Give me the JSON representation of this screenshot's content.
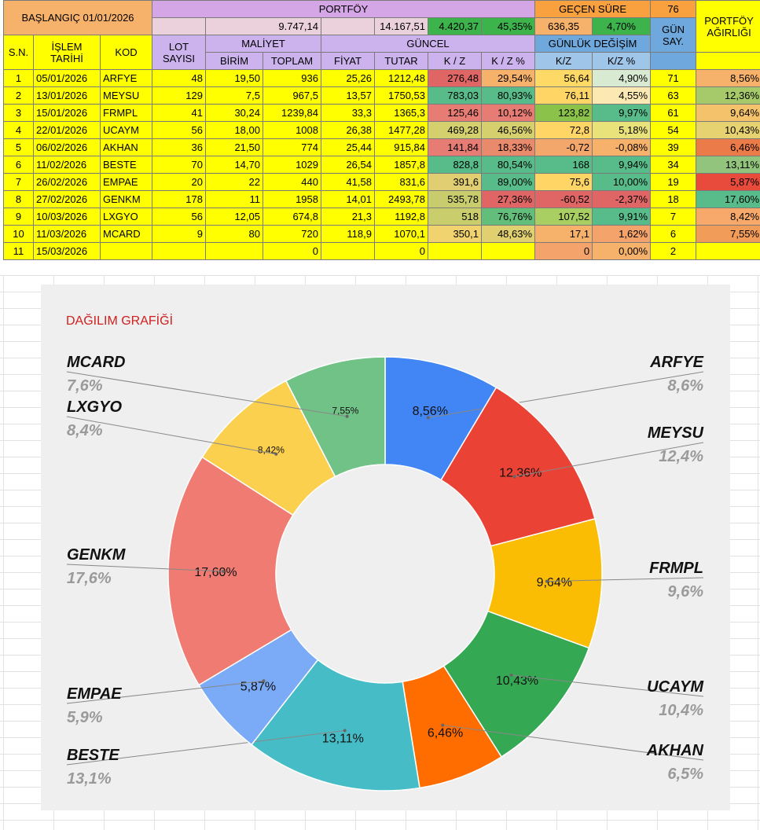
{
  "header": {
    "start_label": "BAŞLANGIÇ 01/01/2026",
    "portfolio_label": "PORTFÖY",
    "elapsed_label": "GEÇEN SÜRE",
    "elapsed_value": "76",
    "weight_label": "PORTFÖY AĞIRLIĞI",
    "portfolio_cost_total": "9.747,14",
    "portfolio_current_total": "14.167,51",
    "portfolio_pl": "4.420,37",
    "portfolio_pl_pct": "45,35%",
    "daily_change_total": "636,35",
    "daily_change_pct": "4,70%"
  },
  "columns": {
    "sn": "S.N.",
    "date": "İŞLEM TARİHİ",
    "code": "KOD",
    "lot": "LOT SAYISI",
    "cost_group": "MALİYET",
    "unit": "BİRİM",
    "total": "TOPLAM",
    "current_group": "GÜNCEL",
    "price": "FİYAT",
    "amount": "TUTAR",
    "pl": "K / Z",
    "pl_pct": "K / Z %",
    "daily_group": "GÜNLÜK DEĞİŞİM",
    "daily_pl": "K/Z",
    "daily_pl_pct": "K/Z %",
    "days": "GÜN SAY."
  },
  "rows": [
    {
      "sn": "1",
      "date": "05/01/2026",
      "code": "ARFYE",
      "lot": "48",
      "unit": "19,50",
      "total": "936",
      "price": "25,26",
      "amount": "1212,48",
      "pl": "276,48",
      "pl_pct": "29,54%",
      "dpl": "56,64",
      "dpl_pct": "4,90%",
      "days": "71",
      "weight": "8,56%",
      "c_pl": "#e06666",
      "c_plp": "#f6b26b",
      "c_dpl": "#ffd966",
      "c_dplp": "#d9ead3",
      "c_w": "#f6b26b"
    },
    {
      "sn": "2",
      "date": "13/01/2026",
      "code": "MEYSU",
      "lot": "129",
      "unit": "7,5",
      "total": "967,5",
      "price": "13,57",
      "amount": "1750,53",
      "pl": "783,03",
      "pl_pct": "80,93%",
      "dpl": "76,11",
      "dpl_pct": "4,55%",
      "days": "63",
      "weight": "12,36%",
      "c_pl": "#57bb8a",
      "c_plp": "#57bb8a",
      "c_dpl": "#ffd666",
      "c_dplp": "#fce8b2",
      "c_w": "#a6c96a"
    },
    {
      "sn": "3",
      "date": "15/01/2026",
      "code": "FRMPL",
      "lot": "41",
      "unit": "30,24",
      "total": "1239,84",
      "price": "33,3",
      "amount": "1365,3",
      "pl": "125,46",
      "pl_pct": "10,12%",
      "dpl": "123,82",
      "dpl_pct": "9,97%",
      "days": "61",
      "weight": "9,64%",
      "c_pl": "#e67c73",
      "c_plp": "#e67c73",
      "c_dpl": "#8bc34a",
      "c_dplp": "#57bb8a",
      "c_w": "#f3c26b"
    },
    {
      "sn": "4",
      "date": "22/01/2026",
      "code": "UCAYM",
      "lot": "56",
      "unit": "18,00",
      "total": "1008",
      "price": "26,38",
      "amount": "1477,28",
      "pl": "469,28",
      "pl_pct": "46,56%",
      "dpl": "72,8",
      "dpl_pct": "5,18%",
      "days": "54",
      "weight": "10,43%",
      "c_pl": "#d4d06e",
      "c_plp": "#d6cf6e",
      "c_dpl": "#ffd666",
      "c_dplp": "#e9e27a",
      "c_w": "#e6d271"
    },
    {
      "sn": "5",
      "date": "06/02/2026",
      "code": "AKHAN",
      "lot": "36",
      "unit": "21,50",
      "total": "774",
      "price": "25,44",
      "amount": "915,84",
      "pl": "141,84",
      "pl_pct": "18,33%",
      "dpl": "-0,72",
      "dpl_pct": "-0,08%",
      "days": "39",
      "weight": "6,46%",
      "c_pl": "#e67c73",
      "c_plp": "#ea8a6c",
      "c_dpl": "#f4a76a",
      "c_dplp": "#f6b26b",
      "c_w": "#ec7b4a"
    },
    {
      "sn": "6",
      "date": "11/02/2026",
      "code": "BESTE",
      "lot": "70",
      "unit": "14,70",
      "total": "1029",
      "price": "26,54",
      "amount": "1857,8",
      "pl": "828,8",
      "pl_pct": "80,54%",
      "dpl": "168",
      "dpl_pct": "9,94%",
      "days": "34",
      "weight": "13,11%",
      "c_pl": "#57bb8a",
      "c_plp": "#57bb8a",
      "c_dpl": "#57bb8a",
      "c_dplp": "#57bb8a",
      "c_w": "#93c47d"
    },
    {
      "sn": "7",
      "date": "26/02/2026",
      "code": "EMPAE",
      "lot": "20",
      "unit": "22",
      "total": "440",
      "price": "41,58",
      "amount": "831,6",
      "pl": "391,6",
      "pl_pct": "89,00%",
      "dpl": "75,6",
      "dpl_pct": "10,00%",
      "days": "19",
      "weight": "5,87%",
      "c_pl": "#e1cd72",
      "c_plp": "#57bb8a",
      "c_dpl": "#ffd666",
      "c_dplp": "#57bb8a",
      "c_w": "#e84a3c"
    },
    {
      "sn": "8",
      "date": "27/02/2026",
      "code": "GENKM",
      "lot": "178",
      "unit": "11",
      "total": "1958",
      "price": "14,01",
      "amount": "2493,78",
      "pl": "535,78",
      "pl_pct": "27,36%",
      "dpl": "-60,52",
      "dpl_pct": "-2,37%",
      "days": "18",
      "weight": "17,60%",
      "c_pl": "#c8cc6c",
      "c_plp": "#e06666",
      "c_dpl": "#e06666",
      "c_dplp": "#e06666",
      "c_w": "#57bb8a"
    },
    {
      "sn": "9",
      "date": "10/03/2026",
      "code": "LXGYO",
      "lot": "56",
      "unit": "12,05",
      "total": "674,8",
      "price": "21,3",
      "amount": "1192,8",
      "pl": "518",
      "pl_pct": "76,76%",
      "dpl": "107,52",
      "dpl_pct": "9,91%",
      "days": "7",
      "weight": "8,42%",
      "c_pl": "#c9cd6b",
      "c_plp": "#63be7b",
      "c_dpl": "#a9cf63",
      "c_dplp": "#57bb8a",
      "c_w": "#f6a96b"
    },
    {
      "sn": "10",
      "date": "11/03/2026",
      "code": "MCARD",
      "lot": "9",
      "unit": "80",
      "total": "720",
      "price": "118,9",
      "amount": "1070,1",
      "pl": "350,1",
      "pl_pct": "48,63%",
      "dpl": "17,1",
      "dpl_pct": "1,62%",
      "days": "6",
      "weight": "7,55%",
      "c_pl": "#f0d36e",
      "c_plp": "#e1d070",
      "c_dpl": "#f6b26b",
      "c_dplp": "#f4a46a",
      "c_w": "#f29c5a"
    },
    {
      "sn": "11",
      "date": "15/03/2026",
      "code": "",
      "lot": "",
      "unit": "",
      "total": "0",
      "price": "",
      "amount": "0",
      "pl": "",
      "pl_pct": "",
      "dpl": "0",
      "dpl_pct": "0,00%",
      "days": "2",
      "weight": "",
      "c_pl": "#ffff00",
      "c_plp": "#ffff00",
      "c_dpl": "#f4a46a",
      "c_dplp": "#f6b26b",
      "c_w": "#ffff00"
    }
  ],
  "chart_data": {
    "type": "pie",
    "donut": true,
    "title": "DAĞILIM GRAFİĞİ",
    "slices": [
      {
        "label": "ARFYE",
        "value": 8.56,
        "slice_label": "8,56%",
        "legend_pct": "8,6%",
        "color": "#4285f4"
      },
      {
        "label": "MEYSU",
        "value": 12.36,
        "slice_label": "12,36%",
        "legend_pct": "12,4%",
        "color": "#ea4335"
      },
      {
        "label": "FRMPL",
        "value": 9.64,
        "slice_label": "9,64%",
        "legend_pct": "9,6%",
        "color": "#fbbc04"
      },
      {
        "label": "UCAYM",
        "value": 10.43,
        "slice_label": "10,43%",
        "legend_pct": "10,4%",
        "color": "#34a853"
      },
      {
        "label": "AKHAN",
        "value": 6.46,
        "slice_label": "6,46%",
        "legend_pct": "6,5%",
        "color": "#ff6d01"
      },
      {
        "label": "BESTE",
        "value": 13.11,
        "slice_label": "13,11%",
        "legend_pct": "13,1%",
        "color": "#46bdc6"
      },
      {
        "label": "EMPAE",
        "value": 5.87,
        "slice_label": "5,87%",
        "legend_pct": "5,9%",
        "color": "#7baaf7"
      },
      {
        "label": "GENKM",
        "value": 17.6,
        "slice_label": "17,60%",
        "legend_pct": "17,6%",
        "color": "#f07b72"
      },
      {
        "label": "LXGYO",
        "value": 8.42,
        "slice_label": "8,42%",
        "legend_pct": "8,4%",
        "color": "#fcd04f"
      },
      {
        "label": "MCARD",
        "value": 7.55,
        "slice_label": "7,55%",
        "legend_pct": "7,6%",
        "color": "#71c287"
      }
    ]
  }
}
